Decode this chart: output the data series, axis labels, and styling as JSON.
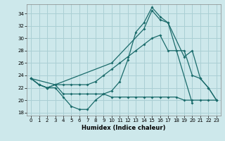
{
  "xlabel": "Humidex (Indice chaleur)",
  "xlim": [
    -0.5,
    23.5
  ],
  "ylim": [
    17.5,
    35.5
  ],
  "yticks": [
    18,
    20,
    22,
    24,
    26,
    28,
    30,
    32,
    34
  ],
  "xticks": [
    0,
    1,
    2,
    3,
    4,
    5,
    6,
    7,
    8,
    9,
    10,
    11,
    12,
    13,
    14,
    15,
    16,
    17,
    18,
    19,
    20,
    21,
    22,
    23
  ],
  "bg_color": "#cde8eb",
  "grid_color": "#aacfd4",
  "line_color": "#1a6b6b",
  "lines": [
    {
      "x": [
        0,
        1,
        2,
        3,
        4,
        5,
        6,
        7,
        8,
        9,
        10,
        11,
        12,
        13,
        14,
        15,
        16,
        17,
        20
      ],
      "y": [
        23.5,
        22.5,
        22.0,
        22.0,
        20.5,
        19.0,
        18.5,
        18.5,
        20.0,
        21.0,
        21.5,
        23.0,
        26.5,
        31.0,
        32.5,
        35.0,
        33.5,
        32.5,
        19.5
      ]
    },
    {
      "x": [
        0,
        1,
        2,
        3,
        4,
        5,
        6,
        7,
        8,
        9,
        10,
        11,
        12,
        13,
        14,
        15,
        16,
        17,
        18,
        19,
        20,
        21,
        22,
        23
      ],
      "y": [
        23.5,
        22.5,
        22.0,
        22.5,
        21.0,
        21.0,
        21.0,
        21.0,
        21.0,
        21.0,
        20.5,
        20.5,
        20.5,
        20.5,
        20.5,
        20.5,
        20.5,
        20.5,
        20.5,
        20.0,
        20.0,
        20.0,
        20.0,
        20.0
      ]
    },
    {
      "x": [
        0,
        1,
        2,
        3,
        4,
        5,
        6,
        7,
        8,
        9,
        10,
        11,
        12,
        13,
        14,
        15,
        16,
        17,
        18,
        19,
        20,
        21,
        22,
        23
      ],
      "y": [
        23.5,
        22.5,
        22.0,
        22.5,
        22.5,
        22.5,
        22.5,
        22.5,
        23.0,
        24.0,
        25.0,
        26.0,
        27.0,
        28.0,
        29.0,
        30.0,
        30.5,
        28.0,
        28.0,
        28.0,
        24.0,
        23.5,
        22.0,
        20.0
      ]
    },
    {
      "x": [
        0,
        3,
        10,
        14,
        15,
        16,
        17,
        19,
        20,
        21,
        22,
        23
      ],
      "y": [
        23.5,
        22.5,
        26.0,
        31.5,
        34.5,
        33.0,
        32.5,
        27.0,
        28.0,
        23.5,
        22.0,
        20.0
      ]
    }
  ]
}
